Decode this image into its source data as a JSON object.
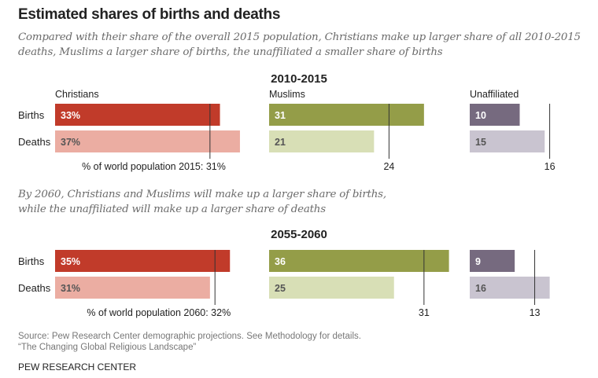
{
  "title": "Estimated shares of births and deaths",
  "subtitle_1": "Compared with their share of the overall 2015 population, Christians make up larger share of all 2010-2015 deaths, Muslims a larger share of births, the unaffiliated a smaller share of births",
  "subtitle_2": "By 2060, Christians and Muslims will make up a larger share of births, while the unaffiliated will make up a larger share of deaths",
  "source": "Source: Pew Research Center demographic projections. See Methodology for details.",
  "report": "“The Changing Global Religious Landscape”",
  "brand": "PEW RESEARCH CENTER",
  "chart_data": [
    {
      "type": "bar",
      "title": "2010-2015",
      "categories": [
        "Births",
        "Deaths"
      ],
      "groups": [
        "Christians",
        "Muslims",
        "Unaffiliated"
      ],
      "series": [
        {
          "name": "Christians",
          "values": [
            33,
            37
          ],
          "labels": [
            "33%",
            "37%"
          ],
          "reference": 31,
          "reference_label": "% of world population 2015: 31%"
        },
        {
          "name": "Muslims",
          "values": [
            31,
            21
          ],
          "labels": [
            "31",
            "21"
          ],
          "reference": 24,
          "reference_label": "24"
        },
        {
          "name": "Unaffiliated",
          "values": [
            10,
            15
          ],
          "labels": [
            "10",
            "15"
          ],
          "reference": 16,
          "reference_label": "16"
        }
      ]
    },
    {
      "type": "bar",
      "title": "2055-2060",
      "categories": [
        "Births",
        "Deaths"
      ],
      "series": [
        {
          "name": "Christians",
          "values": [
            35,
            31
          ],
          "labels": [
            "35%",
            "31%"
          ],
          "reference": 32,
          "reference_label": "% of world population 2060: 32%"
        },
        {
          "name": "Muslims",
          "values": [
            36,
            25
          ],
          "labels": [
            "36",
            "25"
          ],
          "reference": 31,
          "reference_label": "31"
        },
        {
          "name": "Unaffiliated",
          "values": [
            9,
            16
          ],
          "labels": [
            "9",
            "16"
          ],
          "reference": 13,
          "reference_label": "13"
        }
      ]
    }
  ],
  "colors": {
    "Christians": [
      "#c13b2a",
      "#ebada2"
    ],
    "Muslims": [
      "#949d48",
      "#d8dfb6"
    ],
    "Unaffiliated": [
      "#766a7f",
      "#c9c4d0"
    ]
  }
}
